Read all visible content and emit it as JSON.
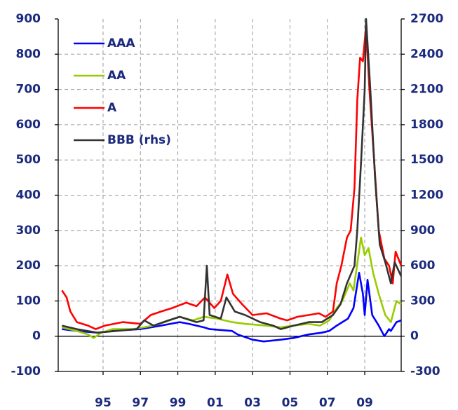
{
  "chart_data": {
    "type": "line",
    "xlim": [
      1992.6,
      2010.95
    ],
    "xticks": [
      {
        "value": 1995,
        "label": "95"
      },
      {
        "value": 1997,
        "label": "97"
      },
      {
        "value": 1999,
        "label": "99"
      },
      {
        "value": 2001,
        "label": "01"
      },
      {
        "value": 2003,
        "label": "03"
      },
      {
        "value": 2005,
        "label": "05"
      },
      {
        "value": 2007,
        "label": "07"
      },
      {
        "value": 2009,
        "label": "09"
      }
    ],
    "ylim": [
      -100,
      900
    ],
    "yticks": [
      -100,
      0,
      100,
      200,
      300,
      400,
      500,
      600,
      700,
      800,
      900
    ],
    "y2lim": [
      -300,
      2700
    ],
    "y2ticks": [
      -300,
      0,
      300,
      600,
      900,
      1200,
      1500,
      1800,
      2100,
      2400,
      2700
    ],
    "grid": true,
    "legend": "upper left",
    "series": [
      {
        "name": "AAA",
        "color": "#0000ff",
        "x": [
          1992.8,
          1993.6,
          1994.7,
          1995.5,
          1997.0,
          1998.1,
          1999.1,
          1999.6,
          2000.4,
          2000.7,
          2001.9,
          2002.2,
          2003.0,
          2003.6,
          2004.5,
          2005.2,
          2006.0,
          2006.7,
          2007.1,
          2007.5,
          2008.1,
          2008.4,
          2008.7,
          2008.9,
          2009.0,
          2009.15,
          2009.4,
          2009.75,
          2010.05,
          2010.3,
          2010.4,
          2010.7,
          2010.95
        ],
        "values": [
          20,
          15,
          10,
          15,
          20,
          30,
          40,
          35,
          25,
          20,
          15,
          5,
          -10,
          -15,
          -10,
          -5,
          5,
          10,
          15,
          30,
          50,
          80,
          180,
          120,
          60,
          160,
          60,
          30,
          0,
          20,
          15,
          40,
          45
        ]
      },
      {
        "name": "AA",
        "color": "#99cc00",
        "x": [
          1992.8,
          1993.6,
          1994.2,
          1994.5,
          1994.9,
          1995.5,
          1996.6,
          1997.7,
          1998.3,
          1999.1,
          1999.8,
          2000.4,
          2001.1,
          2001.9,
          2002.6,
          2003.7,
          2004.5,
          2005.2,
          2006.0,
          2006.6,
          2007.1,
          2007.5,
          2007.8,
          2008.2,
          2008.4,
          2008.8,
          2009.0,
          2009.2,
          2009.45,
          2009.75,
          2010.1,
          2010.4,
          2010.7,
          2010.95
        ],
        "values": [
          25,
          15,
          5,
          -5,
          10,
          20,
          20,
          30,
          40,
          55,
          45,
          55,
          50,
          40,
          35,
          30,
          25,
          30,
          35,
          30,
          45,
          80,
          100,
          150,
          130,
          280,
          230,
          250,
          180,
          120,
          60,
          40,
          100,
          90
        ]
      },
      {
        "name": "A",
        "color": "#ff0000",
        "x": [
          1992.8,
          1993.05,
          1993.25,
          1993.6,
          1994.2,
          1994.6,
          1995.1,
          1996.05,
          1997.0,
          1997.55,
          1998.1,
          1998.7,
          1999.45,
          2000.0,
          2000.45,
          2000.95,
          2001.3,
          2001.65,
          2001.95,
          2002.45,
          2003.0,
          2003.75,
          2004.5,
          2004.85,
          2005.4,
          2006.0,
          2006.55,
          2006.9,
          2007.3,
          2007.5,
          2007.75,
          2008.05,
          2008.25,
          2008.45,
          2008.6,
          2008.75,
          2008.9,
          2009.07,
          2009.25,
          2009.5,
          2009.75,
          2010.05,
          2010.3,
          2010.5,
          2010.65,
          2010.95
        ],
        "values": [
          130,
          110,
          70,
          40,
          30,
          20,
          30,
          40,
          35,
          60,
          70,
          80,
          95,
          85,
          110,
          80,
          100,
          175,
          120,
          90,
          60,
          65,
          50,
          45,
          55,
          60,
          65,
          55,
          70,
          150,
          200,
          280,
          300,
          420,
          670,
          790,
          780,
          880,
          700,
          500,
          300,
          220,
          200,
          150,
          240,
          200
        ]
      },
      {
        "name": "BBB (rhs)",
        "color": "#333333",
        "axis": "y2",
        "x": [
          1992.8,
          1993.6,
          1994.7,
          1995.7,
          1996.8,
          1997.2,
          1997.7,
          1998.5,
          1999.1,
          2000.0,
          2000.38,
          2000.55,
          2000.7,
          2001.3,
          2001.6,
          2002.05,
          2002.6,
          2003.4,
          2004.1,
          2004.5,
          2005.2,
          2006.0,
          2006.7,
          2007.3,
          2007.7,
          2008.05,
          2008.45,
          2008.6,
          2008.8,
          2009.0,
          2009.07,
          2009.3,
          2009.55,
          2009.8,
          2010.1,
          2010.4,
          2010.6,
          2010.95
        ],
        "values": [
          90,
          60,
          30,
          45,
          60,
          135,
          90,
          135,
          165,
          120,
          135,
          600,
          180,
          150,
          330,
          210,
          180,
          120,
          90,
          60,
          90,
          120,
          120,
          180,
          270,
          450,
          600,
          900,
          1470,
          2100,
          2700,
          2100,
          1350,
          780,
          630,
          450,
          630,
          510
        ]
      }
    ]
  }
}
